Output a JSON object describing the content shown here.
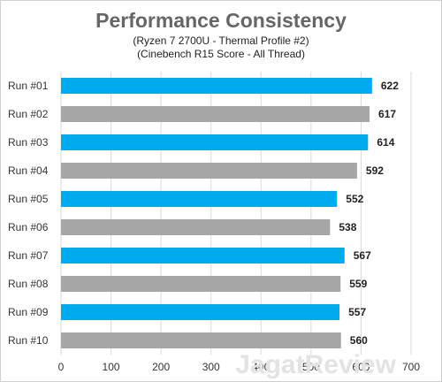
{
  "chart_data": {
    "type": "bar",
    "orientation": "horizontal",
    "title": "Performance Consistency",
    "subtitle": [
      "(Ryzen 7 2700U - Thermal Profile #2)",
      "(Cinebench R15 Score - All Thread)"
    ],
    "categories": [
      "Run #01",
      "Run #02",
      "Run #03",
      "Run #04",
      "Run #05",
      "Run #06",
      "Run #07",
      "Run #08",
      "Run #09",
      "Run #10"
    ],
    "values": [
      622,
      617,
      614,
      592,
      552,
      538,
      567,
      559,
      557,
      560
    ],
    "bar_colors": [
      "#00aaee",
      "#a6a6a6",
      "#00aaee",
      "#a6a6a6",
      "#00aaee",
      "#a6a6a6",
      "#00aaee",
      "#a6a6a6",
      "#00aaee",
      "#a6a6a6"
    ],
    "xlim": [
      0,
      700
    ],
    "xticks": [
      0,
      100,
      200,
      300,
      400,
      500,
      600,
      700
    ],
    "grid": "vertical",
    "gridline_color": "#d9d9d9",
    "watermark": "JagatReview"
  }
}
